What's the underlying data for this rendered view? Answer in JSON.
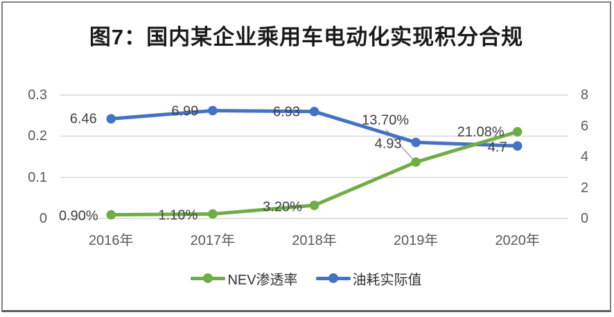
{
  "chart_data": {
    "type": "line",
    "title": "图7：国内某企业乘用车电动化实现积分合规",
    "categories": [
      "2016年",
      "2017年",
      "2018年",
      "2019年",
      "2020年"
    ],
    "series": [
      {
        "name": "NEV渗透率",
        "axis": "left",
        "color": "#70AD47",
        "values": [
          0.009,
          0.011,
          0.032,
          0.137,
          0.2108
        ],
        "labels": [
          "0.90%",
          "1.10%",
          "3.20%",
          "13.70%",
          "21.08%"
        ]
      },
      {
        "name": "油耗实际值",
        "axis": "right",
        "color": "#4472C4",
        "values": [
          6.46,
          6.99,
          6.93,
          4.93,
          4.7
        ],
        "labels": [
          "6.46",
          "6.99",
          "6.93",
          "4.93",
          "4.7"
        ]
      }
    ],
    "left_axis": {
      "min": 0,
      "max": 0.3,
      "ticks": [
        "0",
        "0.1",
        "0.2",
        "0.3"
      ]
    },
    "right_axis": {
      "min": 0,
      "max": 8,
      "ticks": [
        "0",
        "2",
        "4",
        "6",
        "8"
      ]
    },
    "grid": true,
    "legend_position": "bottom"
  },
  "colors": {
    "gridline": "#D9D9D9",
    "axis_text": "#595959",
    "data_label_text": "#404040",
    "leader_line": "#A6A6A6",
    "title_text": "#1A1A1A",
    "frame_border": "#808080"
  }
}
